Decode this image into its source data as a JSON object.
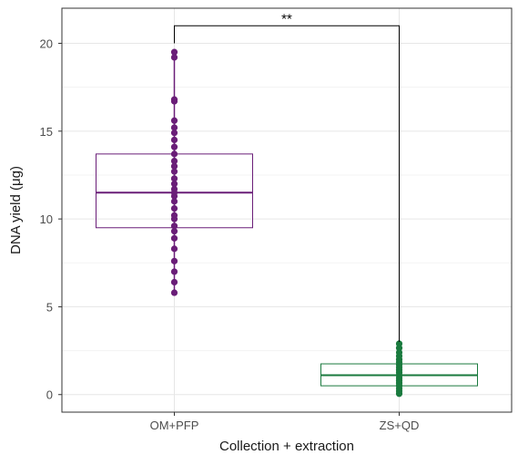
{
  "chart_data": {
    "type": "boxplot",
    "title": "",
    "xlabel": "Collection + extraction",
    "ylabel": "DNA yield (μg)",
    "ylim": [
      -1,
      22
    ],
    "yticks": [
      0,
      5,
      10,
      15,
      20
    ],
    "categories": [
      "OM+PFP",
      "ZS+QD"
    ],
    "grid": true,
    "legend": "none",
    "groups": [
      {
        "name": "OM+PFP",
        "color": "#6a1e78",
        "box": {
          "q1": 9.5,
          "median": 11.5,
          "q3": 13.7
        },
        "points": [
          5.8,
          6.4,
          7.0,
          7.6,
          8.3,
          8.9,
          9.3,
          9.6,
          10.0,
          10.2,
          10.6,
          11.0,
          11.3,
          11.5,
          11.7,
          12.0,
          12.3,
          12.7,
          13.0,
          13.3,
          13.7,
          14.1,
          14.5,
          14.9,
          15.2,
          15.6,
          16.7,
          16.8,
          19.2,
          19.5
        ]
      },
      {
        "name": "ZS+QD",
        "color": "#1a7a3e",
        "box": {
          "q1": 0.5,
          "median": 1.1,
          "q3": 1.75
        },
        "points": [
          0.05,
          0.2,
          0.35,
          0.5,
          0.65,
          0.8,
          0.95,
          1.1,
          1.25,
          1.4,
          1.55,
          1.7,
          1.85,
          2.0,
          2.2,
          2.4,
          2.65,
          2.9
        ]
      }
    ],
    "significance": {
      "label": "**",
      "from": "OM+PFP",
      "to": "ZS+QD",
      "y": 21.0,
      "left_drop": 20.0,
      "right_drop": 3.0
    }
  }
}
